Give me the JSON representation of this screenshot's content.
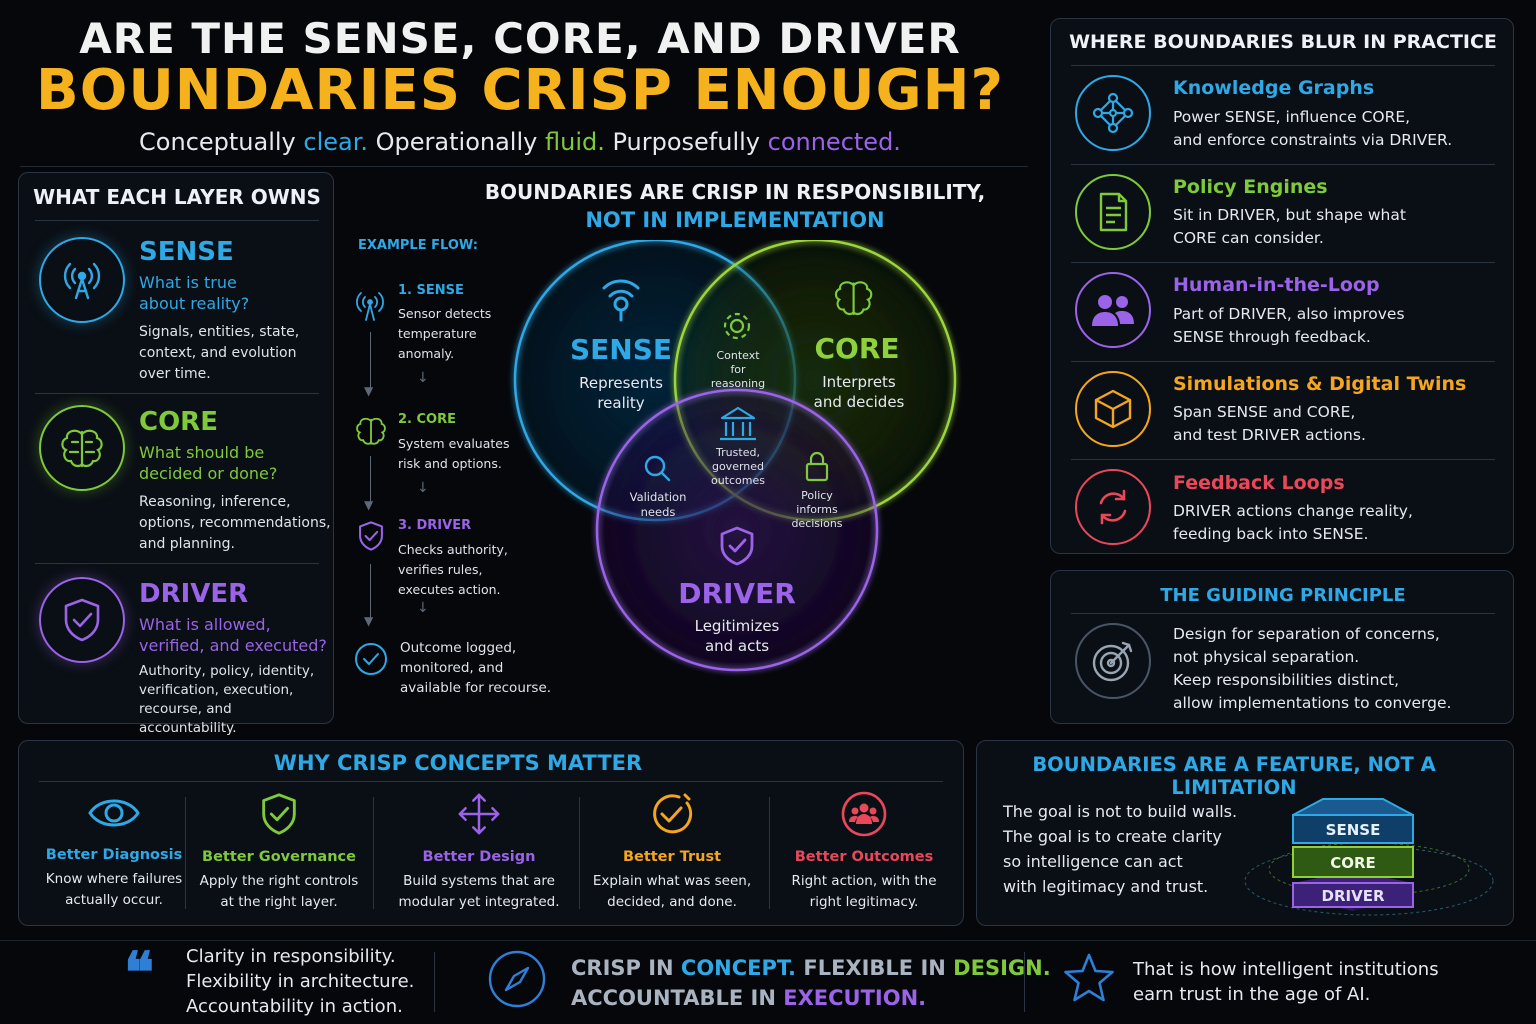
{
  "title": {
    "line1": "ARE THE SENSE, CORE, AND DRIVER",
    "line2": "BOUNDARIES CRISP ENOUGH?",
    "tagline": {
      "p1": "Conceptually ",
      "w1": "clear.",
      "p2": " Operationally ",
      "w2": "fluid.",
      "p3": " Purposefully ",
      "w3": "connected."
    }
  },
  "left_panel": {
    "heading": "WHAT EACH LAYER OWNS",
    "layers": [
      {
        "name": "SENSE",
        "question": [
          "What is true",
          "about reality?"
        ],
        "desc": [
          "Signals, entities, state,",
          "context, and evolution",
          "over time."
        ]
      },
      {
        "name": "CORE",
        "question": [
          "What should be",
          "decided or done?"
        ],
        "desc": [
          "Reasoning, inference,",
          "options, recommendations,",
          "and planning."
        ]
      },
      {
        "name": "DRIVER",
        "question": [
          "What is allowed,",
          "verified, and executed?"
        ],
        "desc": [
          "Authority, policy, identity,",
          "verification, execution,",
          "recourse, and accountability."
        ]
      }
    ]
  },
  "center": {
    "heading1": "BOUNDARIES ARE CRISP IN RESPONSIBILITY,",
    "heading2": "NOT IN IMPLEMENTATION",
    "flow_label": "EXAMPLE FLOW:",
    "flow": [
      {
        "title": "1. SENSE",
        "text": [
          "Sensor detects",
          "temperature",
          "anomaly."
        ]
      },
      {
        "title": "2. CORE",
        "text": [
          "System evaluates",
          "risk and options."
        ]
      },
      {
        "title": "3. DRIVER",
        "text": [
          "Checks authority,",
          "verifies rules,",
          "executes action."
        ]
      },
      {
        "title": "",
        "text": [
          "Outcome logged,",
          "monitored, and",
          "available for recourse."
        ]
      }
    ],
    "venn": {
      "sense": {
        "name": "SENSE",
        "desc": [
          "Represents",
          "reality"
        ]
      },
      "core": {
        "name": "CORE",
        "desc": [
          "Interprets",
          "and decides"
        ]
      },
      "driver": {
        "name": "DRIVER",
        "desc": [
          "Legitimizes",
          "and acts"
        ]
      },
      "sense_core": [
        "Context",
        "for",
        "reasoning"
      ],
      "sense_driver": [
        "Validation",
        "needs"
      ],
      "core_driver": [
        "Policy",
        "informs",
        "decisions"
      ],
      "center": [
        "Trusted,",
        "governed",
        "outcomes"
      ]
    }
  },
  "right_panel": {
    "heading": "WHERE BOUNDARIES BLUR IN PRACTICE",
    "items": [
      {
        "title": "Knowledge Graphs",
        "text": [
          "Power SENSE, influence CORE,",
          "and enforce constraints via DRIVER."
        ],
        "color": "#2fa8e6",
        "icon": "network-icon"
      },
      {
        "title": "Policy Engines",
        "text": [
          "Sit in DRIVER, but shape what",
          "CORE can consider."
        ],
        "color": "#7fc93a",
        "icon": "document-icon"
      },
      {
        "title": "Human-in-the-Loop",
        "text": [
          "Part of DRIVER, also improves",
          "SENSE through feedback."
        ],
        "color": "#9a63e8",
        "icon": "people-icon"
      },
      {
        "title": "Simulations & Digital Twins",
        "text": [
          "Span SENSE and CORE,",
          "and test DRIVER actions."
        ],
        "color": "#f4a61e",
        "icon": "cube-icon"
      },
      {
        "title": "Feedback Loops",
        "text": [
          "DRIVER actions change reality,",
          "feeding back into SENSE."
        ],
        "color": "#e8485a",
        "icon": "loop-icon"
      }
    ]
  },
  "principle": {
    "heading": "THE GUIDING PRINCIPLE",
    "text": [
      "Design for separation of concerns,",
      "not physical separation.",
      "Keep responsibilities distinct,",
      "allow implementations to converge."
    ]
  },
  "why": {
    "heading": "WHY CRISP CONCEPTS MATTER",
    "items": [
      {
        "title": "Better Diagnosis",
        "text": [
          "Know where failures",
          "actually occur."
        ],
        "color": "#2fa8e6",
        "icon": "eye-icon"
      },
      {
        "title": "Better Governance",
        "text": [
          "Apply the right controls",
          "at the right layer."
        ],
        "color": "#7fc93a",
        "icon": "shield-check-icon"
      },
      {
        "title": "Better Design",
        "text": [
          "Build systems that are",
          "modular yet integrated."
        ],
        "color": "#9a63e8",
        "icon": "move-arrows-icon"
      },
      {
        "title": "Better Trust",
        "text": [
          "Explain what was seen,",
          "decided, and done."
        ],
        "color": "#f4a61e",
        "icon": "check-circle-icon"
      },
      {
        "title": "Better Outcomes",
        "text": [
          "Right action, with the",
          "right legitimacy."
        ],
        "color": "#e8485a",
        "icon": "group-icon"
      }
    ]
  },
  "feature": {
    "heading": "BOUNDARIES ARE A FEATURE, NOT A LIMITATION",
    "text": [
      "The goal is not to build walls.",
      "The goal is to create clarity",
      "so intelligence can act",
      "with legitimacy and trust."
    ],
    "stack": [
      "SENSE",
      "CORE",
      "DRIVER"
    ]
  },
  "footer": {
    "quote": [
      "Clarity in responsibility.",
      "Flexibility in architecture.",
      "Accountability in action."
    ],
    "motto_line1": {
      "a": "CRISP IN ",
      "b": "CONCEPT.",
      "c": " FLEXIBLE IN ",
      "d": "DESIGN."
    },
    "motto_line2": {
      "a": "ACCOUNTABLE IN ",
      "b": "EXECUTION."
    },
    "closing": [
      "That is how intelligent institutions",
      "earn trust in the age of AI."
    ]
  }
}
